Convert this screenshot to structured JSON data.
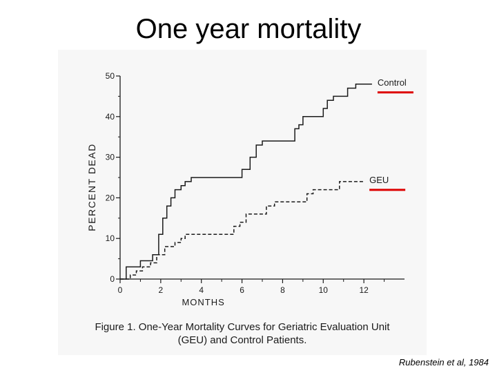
{
  "slide": {
    "title": "One year mortality",
    "credit": "Rubenstein et al, 1984"
  },
  "figure": {
    "caption_line1": "Figure 1. One-Year Mortality Curves for Geriatric Evaluation Unit",
    "caption_line2": "(GEU) and Control Patients."
  },
  "colors": {
    "highlight": "#dd0000",
    "ink": "#1a1a1a",
    "figure_bg": "#f7f7f7"
  },
  "chart_data": {
    "type": "line",
    "title": "",
    "xlabel": "MONTHS",
    "ylabel": "PERCENT DEAD",
    "xlim": [
      0,
      14
    ],
    "ylim": [
      0,
      50
    ],
    "x_ticks": [
      0,
      2,
      4,
      6,
      8,
      10,
      12
    ],
    "y_ticks": [
      0,
      10,
      20,
      30,
      40,
      50
    ],
    "series": [
      {
        "name": "Control",
        "style": "solid",
        "points": [
          [
            0,
            0
          ],
          [
            0.3,
            0
          ],
          [
            0.3,
            3
          ],
          [
            1,
            3
          ],
          [
            1,
            4.5
          ],
          [
            1.6,
            4.5
          ],
          [
            1.6,
            6
          ],
          [
            1.9,
            6
          ],
          [
            1.9,
            11
          ],
          [
            2.1,
            11
          ],
          [
            2.1,
            15
          ],
          [
            2.3,
            15
          ],
          [
            2.3,
            18
          ],
          [
            2.5,
            18
          ],
          [
            2.5,
            20
          ],
          [
            2.7,
            20
          ],
          [
            2.7,
            22
          ],
          [
            3,
            22
          ],
          [
            3,
            23
          ],
          [
            3.2,
            23
          ],
          [
            3.2,
            24
          ],
          [
            3.5,
            24
          ],
          [
            3.5,
            25
          ],
          [
            6,
            25
          ],
          [
            6,
            27
          ],
          [
            6.4,
            27
          ],
          [
            6.4,
            30
          ],
          [
            6.7,
            30
          ],
          [
            6.7,
            33
          ],
          [
            7,
            33
          ],
          [
            7,
            34
          ],
          [
            8.6,
            34
          ],
          [
            8.6,
            37
          ],
          [
            8.8,
            37
          ],
          [
            8.8,
            38
          ],
          [
            9,
            38
          ],
          [
            9,
            40
          ],
          [
            10,
            40
          ],
          [
            10,
            42
          ],
          [
            10.2,
            42
          ],
          [
            10.2,
            44
          ],
          [
            10.5,
            44
          ],
          [
            10.5,
            45
          ],
          [
            11.2,
            45
          ],
          [
            11.2,
            47
          ],
          [
            11.6,
            47
          ],
          [
            11.6,
            48
          ],
          [
            12.4,
            48
          ]
        ]
      },
      {
        "name": "GEU",
        "style": "dashed",
        "points": [
          [
            0,
            0
          ],
          [
            0.5,
            0
          ],
          [
            0.5,
            1
          ],
          [
            0.8,
            1
          ],
          [
            0.8,
            2
          ],
          [
            1.1,
            2
          ],
          [
            1.1,
            3
          ],
          [
            1.5,
            3
          ],
          [
            1.5,
            4
          ],
          [
            1.8,
            4
          ],
          [
            1.8,
            6
          ],
          [
            2.2,
            6
          ],
          [
            2.2,
            8
          ],
          [
            2.7,
            8
          ],
          [
            2.7,
            9
          ],
          [
            3,
            9
          ],
          [
            3,
            10
          ],
          [
            3.2,
            10
          ],
          [
            3.2,
            11
          ],
          [
            5.6,
            11
          ],
          [
            5.6,
            13
          ],
          [
            5.9,
            13
          ],
          [
            5.9,
            14
          ],
          [
            6.2,
            14
          ],
          [
            6.2,
            16
          ],
          [
            7.2,
            16
          ],
          [
            7.2,
            18
          ],
          [
            7.6,
            18
          ],
          [
            7.6,
            19
          ],
          [
            9.2,
            19
          ],
          [
            9.2,
            21
          ],
          [
            9.5,
            21
          ],
          [
            9.5,
            22
          ],
          [
            10.8,
            22
          ],
          [
            10.8,
            24
          ],
          [
            12,
            24
          ]
        ]
      }
    ]
  }
}
